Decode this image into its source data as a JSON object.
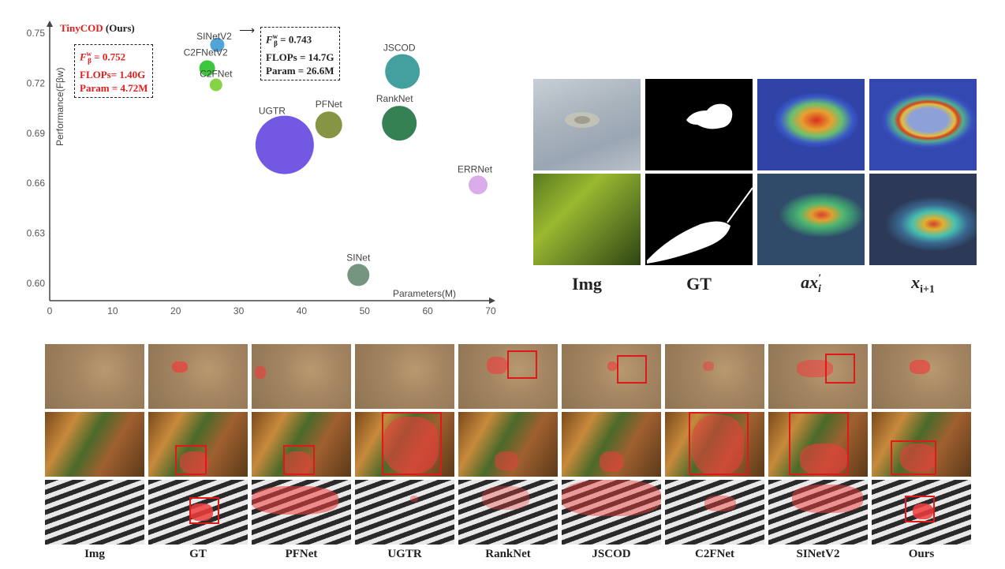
{
  "chart_data": {
    "type": "scatter",
    "xlabel": "Parameters(M)",
    "ylabel": "Performance(Fβw)",
    "xlim": [
      0,
      70
    ],
    "ylim": [
      0.6,
      0.75
    ],
    "xticks": [
      0,
      10,
      20,
      30,
      40,
      50,
      60,
      70
    ],
    "yticks": [
      0.6,
      0.63,
      0.66,
      0.69,
      0.72,
      0.75
    ],
    "points": [
      {
        "name": "SINetV2",
        "x": 26.6,
        "y": 0.743,
        "size": 9,
        "color": "#4a9fd6"
      },
      {
        "name": "C2FNetV2",
        "x": 25.0,
        "y": 0.729,
        "size": 10,
        "color": "#33c433"
      },
      {
        "name": "C2FNet",
        "x": 26.4,
        "y": 0.719,
        "size": 8,
        "color": "#7fd23b"
      },
      {
        "name": "JSCOD",
        "x": 56.0,
        "y": 0.727,
        "size": 22,
        "color": "#3a9a9a"
      },
      {
        "name": "UGTR",
        "x": 37.3,
        "y": 0.683,
        "size": 37,
        "color": "#6a4fe0"
      },
      {
        "name": "PFNet",
        "x": 44.3,
        "y": 0.695,
        "size": 17,
        "color": "#7f8f3a"
      },
      {
        "name": "RankNet",
        "x": 55.5,
        "y": 0.696,
        "size": 22,
        "color": "#2a7a4a"
      },
      {
        "name": "ERRNet",
        "x": 68.0,
        "y": 0.659,
        "size": 12,
        "color": "#d8a8e8"
      },
      {
        "name": "SINet",
        "x": 49.0,
        "y": 0.605,
        "size": 14,
        "color": "#6f8f7a"
      }
    ],
    "ours_title": "TinyCOD (Ours)",
    "ours_title_highlight": "TinyCOD",
    "ours_title_suffix": " (Ours)",
    "ours_box": {
      "fbeta": "= 0.752",
      "flops": "FLOPs= 1.40G",
      "param": "Param = 4.72M"
    },
    "sinetv2_box": {
      "fbeta": "= 0.743",
      "flops": "FLOPs = 14.7G",
      "param": "Param = 26.6M"
    },
    "fbeta_symbol": "F",
    "fbeta_sup": "w",
    "fbeta_sub": "β"
  },
  "attention_panel": {
    "columns": [
      "Img",
      "GT",
      "ax′i",
      "xi+1"
    ],
    "col_img": "Img",
    "col_gt": "GT",
    "col_ax": "ax",
    "col_ax_sub": "i",
    "col_ax_prime": "′",
    "col_x": "x",
    "col_x_sub": "i+1"
  },
  "comparison": {
    "columns": [
      "Img",
      "GT",
      "PFNet",
      "UGTR",
      "RankNet",
      "JSCOD",
      "C2FNet",
      "SINetV2",
      "Ours"
    ]
  },
  "colors": {
    "highlight_red": "#e02020",
    "box_red": "#e01818",
    "axis": "#444444"
  }
}
